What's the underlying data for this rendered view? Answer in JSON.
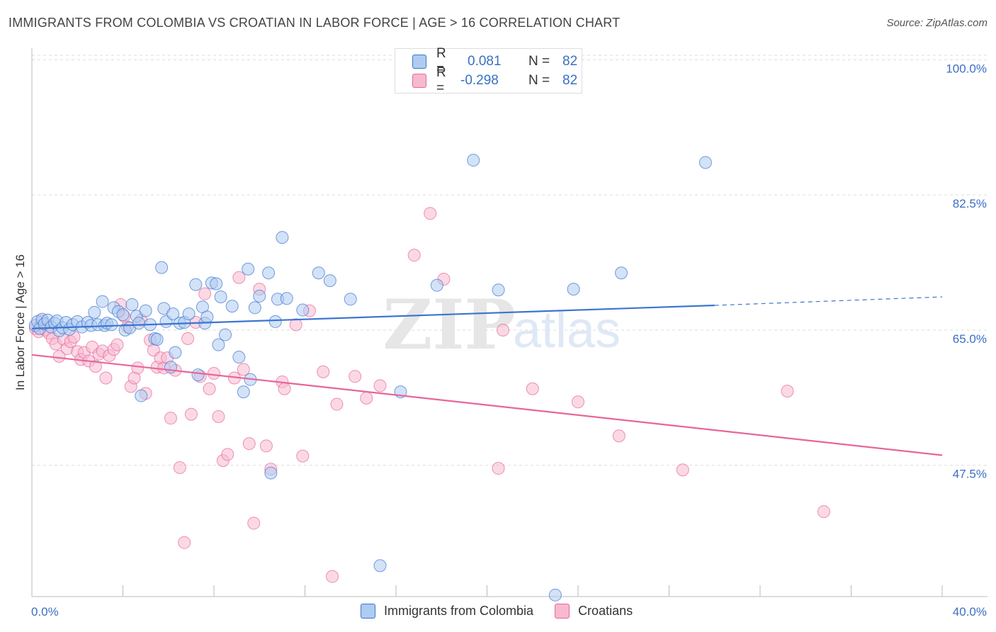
{
  "title": "IMMIGRANTS FROM COLOMBIA VS CROATIAN IN LABOR FORCE | AGE > 16 CORRELATION CHART",
  "source": "Source: ZipAtlas.com",
  "watermark_left": "ZIP",
  "watermark_right": "atlas",
  "colors": {
    "blue": "#3a76d0",
    "blue_fill": "#aecbf0",
    "pink": "#e8659a",
    "pink_fill": "#f6b9cf",
    "axis_text": "#3a6fc4",
    "grid": "#dddddd"
  },
  "legend": {
    "rows": [
      {
        "r_label": "R =",
        "r_value": "0.081",
        "n_label": "N =",
        "n_value": "82"
      },
      {
        "r_label": "R =",
        "r_value": "-0.298",
        "n_label": "N =",
        "n_value": "82"
      }
    ]
  },
  "bottom_legend": [
    "Immigrants from Colombia",
    "Croatians"
  ],
  "chart_data": {
    "type": "scatter",
    "title": "IMMIGRANTS FROM COLOMBIA VS CROATIAN IN LABOR FORCE | AGE > 16 CORRELATION CHART",
    "xlabel": "",
    "ylabel": "In Labor Force | Age > 16",
    "xlim": [
      0,
      40
    ],
    "ylim": [
      30.5,
      101.5
    ],
    "x_tick_labels": [
      "0.0%",
      "40.0%"
    ],
    "y_ticks": [
      47.5,
      65.0,
      82.5,
      100.0
    ],
    "y_tick_labels": [
      "47.5%",
      "65.0%",
      "82.5%",
      "100.0%"
    ],
    "grid": "horizontal dashed",
    "legend_placement": "top-center",
    "series": [
      {
        "name": "Immigrants from Colombia",
        "color": "#3a76d0",
        "r": 0.081,
        "n": 82,
        "trend": {
          "x": [
            0,
            30.0
          ],
          "y": [
            65.2,
            68.2
          ],
          "dashed_to": [
            40,
            69.3
          ]
        },
        "points": [
          [
            0.15,
            65.6
          ],
          [
            0.25,
            66.1
          ],
          [
            0.35,
            65.2
          ],
          [
            0.45,
            66.4
          ],
          [
            0.55,
            65.8
          ],
          [
            0.7,
            66.3
          ],
          [
            0.85,
            65.4
          ],
          [
            1.0,
            65.9
          ],
          [
            1.1,
            66.2
          ],
          [
            1.2,
            64.9
          ],
          [
            1.35,
            65.3
          ],
          [
            1.5,
            66.0
          ],
          [
            1.65,
            65.1
          ],
          [
            1.8,
            65.7
          ],
          [
            2.0,
            66.1
          ],
          [
            2.2,
            65.4
          ],
          [
            2.45,
            66.0
          ],
          [
            2.6,
            65.6
          ],
          [
            2.75,
            67.3
          ],
          [
            2.9,
            65.7
          ],
          [
            3.1,
            68.7
          ],
          [
            3.2,
            65.6
          ],
          [
            3.3,
            65.9
          ],
          [
            3.5,
            65.7
          ],
          [
            3.6,
            67.9
          ],
          [
            3.8,
            67.4
          ],
          [
            4.0,
            67.0
          ],
          [
            4.1,
            65.0
          ],
          [
            4.3,
            65.3
          ],
          [
            4.4,
            68.3
          ],
          [
            4.6,
            66.8
          ],
          [
            4.7,
            65.9
          ],
          [
            4.8,
            56.5
          ],
          [
            5.0,
            67.5
          ],
          [
            5.2,
            65.7
          ],
          [
            5.4,
            63.9
          ],
          [
            5.5,
            63.8
          ],
          [
            5.7,
            73.1
          ],
          [
            5.8,
            67.8
          ],
          [
            5.9,
            66.1
          ],
          [
            6.1,
            60.2
          ],
          [
            6.2,
            67.1
          ],
          [
            6.3,
            62.1
          ],
          [
            6.5,
            65.9
          ],
          [
            6.7,
            66.0
          ],
          [
            6.9,
            67.1
          ],
          [
            7.2,
            70.9
          ],
          [
            7.3,
            59.2
          ],
          [
            7.5,
            68.0
          ],
          [
            7.6,
            65.9
          ],
          [
            7.7,
            66.7
          ],
          [
            7.9,
            71.1
          ],
          [
            8.1,
            71.0
          ],
          [
            8.2,
            63.1
          ],
          [
            8.3,
            69.3
          ],
          [
            8.5,
            64.4
          ],
          [
            8.8,
            68.1
          ],
          [
            9.1,
            61.5
          ],
          [
            9.3,
            57.0
          ],
          [
            9.5,
            72.9
          ],
          [
            9.6,
            58.6
          ],
          [
            9.8,
            67.9
          ],
          [
            10.0,
            69.4
          ],
          [
            10.4,
            72.4
          ],
          [
            10.5,
            46.5
          ],
          [
            10.7,
            66.1
          ],
          [
            10.8,
            69.0
          ],
          [
            11.0,
            77.0
          ],
          [
            11.2,
            69.1
          ],
          [
            11.9,
            67.6
          ],
          [
            12.6,
            72.4
          ],
          [
            13.1,
            71.4
          ],
          [
            14.0,
            69.0
          ],
          [
            15.3,
            34.5
          ],
          [
            16.2,
            57.0
          ],
          [
            17.8,
            70.8
          ],
          [
            19.4,
            87.0
          ],
          [
            20.5,
            70.2
          ],
          [
            23.8,
            70.3
          ],
          [
            25.9,
            72.4
          ],
          [
            29.6,
            86.7
          ],
          [
            23.0,
            30.7
          ]
        ]
      },
      {
        "name": "Croatians",
        "color": "#e8659a",
        "r": -0.298,
        "n": 82,
        "trend": {
          "x": [
            0,
            40
          ],
          "y": [
            61.8,
            48.8
          ]
        },
        "points": [
          [
            0.15,
            65.2
          ],
          [
            0.3,
            64.8
          ],
          [
            0.45,
            66.2
          ],
          [
            0.6,
            65.0
          ],
          [
            0.75,
            64.6
          ],
          [
            0.9,
            63.9
          ],
          [
            1.05,
            63.2
          ],
          [
            1.2,
            61.6
          ],
          [
            1.4,
            63.8
          ],
          [
            1.55,
            62.6
          ],
          [
            1.7,
            63.5
          ],
          [
            1.85,
            64.1
          ],
          [
            2.0,
            62.2
          ],
          [
            2.15,
            61.2
          ],
          [
            2.3,
            62.1
          ],
          [
            2.5,
            61.0
          ],
          [
            2.65,
            62.8
          ],
          [
            2.8,
            60.3
          ],
          [
            2.95,
            61.9
          ],
          [
            3.1,
            62.3
          ],
          [
            3.25,
            58.8
          ],
          [
            3.4,
            61.7
          ],
          [
            3.6,
            62.5
          ],
          [
            3.75,
            63.1
          ],
          [
            3.9,
            68.3
          ],
          [
            4.05,
            66.8
          ],
          [
            4.2,
            65.4
          ],
          [
            4.35,
            57.7
          ],
          [
            4.5,
            58.8
          ],
          [
            4.65,
            60.1
          ],
          [
            4.8,
            66.3
          ],
          [
            5.0,
            56.8
          ],
          [
            5.2,
            63.7
          ],
          [
            5.35,
            62.4
          ],
          [
            5.5,
            60.2
          ],
          [
            5.65,
            61.4
          ],
          [
            5.8,
            60.1
          ],
          [
            5.95,
            61.4
          ],
          [
            6.1,
            53.6
          ],
          [
            6.3,
            59.8
          ],
          [
            6.5,
            47.2
          ],
          [
            6.7,
            37.5
          ],
          [
            6.85,
            63.9
          ],
          [
            7.0,
            54.1
          ],
          [
            7.2,
            66.0
          ],
          [
            7.4,
            59.0
          ],
          [
            7.6,
            69.7
          ],
          [
            7.8,
            57.4
          ],
          [
            8.0,
            59.4
          ],
          [
            8.2,
            53.8
          ],
          [
            8.4,
            48.1
          ],
          [
            8.6,
            48.9
          ],
          [
            8.9,
            58.8
          ],
          [
            9.1,
            71.8
          ],
          [
            9.3,
            59.9
          ],
          [
            9.55,
            50.3
          ],
          [
            9.75,
            40.0
          ],
          [
            10.0,
            70.3
          ],
          [
            10.3,
            50.0
          ],
          [
            10.5,
            47.0
          ],
          [
            11.0,
            58.3
          ],
          [
            11.1,
            57.4
          ],
          [
            11.6,
            65.7
          ],
          [
            11.9,
            48.7
          ],
          [
            12.2,
            67.5
          ],
          [
            12.8,
            59.6
          ],
          [
            13.2,
            33.1
          ],
          [
            13.4,
            55.4
          ],
          [
            14.2,
            59.0
          ],
          [
            14.7,
            56.2
          ],
          [
            15.3,
            57.8
          ],
          [
            16.8,
            74.7
          ],
          [
            17.5,
            80.1
          ],
          [
            18.1,
            71.6
          ],
          [
            20.5,
            47.1
          ],
          [
            20.7,
            65.0
          ],
          [
            22.0,
            57.4
          ],
          [
            24.0,
            55.7
          ],
          [
            25.8,
            51.3
          ],
          [
            28.6,
            46.9
          ],
          [
            33.2,
            57.1
          ],
          [
            34.8,
            41.5
          ]
        ]
      }
    ]
  }
}
